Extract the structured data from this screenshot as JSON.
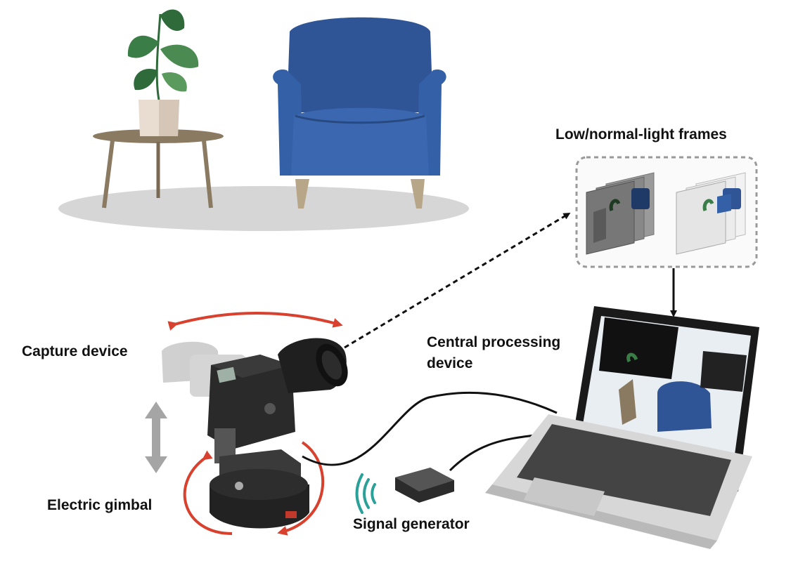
{
  "labels": {
    "frames": "Low/normal-light frames",
    "capture_device": "Capture device",
    "central_processing_line1": "Central processing",
    "central_processing_line2": "device",
    "electric_gimbal": "Electric gimbal",
    "signal_generator": "Signal generator"
  },
  "colors": {
    "armchair": "#2f5597",
    "motion_arrows": "#d9412f",
    "signal_waves": "#2aa198",
    "dashed_arrow": "#111111",
    "frames_box_border": "#999999"
  },
  "icons": [
    "plant-icon",
    "side-table-icon",
    "armchair-icon",
    "camera-icon",
    "gimbal-icon",
    "laptop-icon",
    "signal-generator-icon",
    "signal-waves-icon"
  ]
}
